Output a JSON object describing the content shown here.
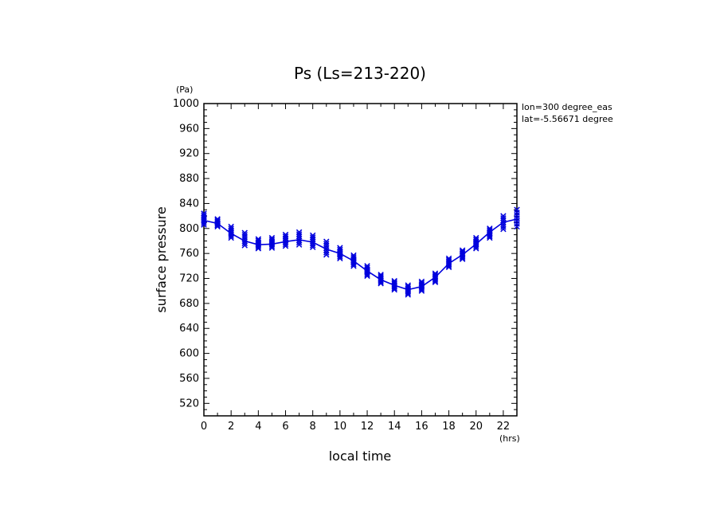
{
  "chart_data": {
    "type": "line",
    "title": "Ps (Ls=213-220)",
    "xlabel": "local time",
    "ylabel": "surface pressure",
    "x_unit": "(hrs)",
    "y_unit": "(Pa)",
    "annotations": [
      "lon=300 degree_eas",
      "lat=-5.56671 degree"
    ],
    "xlim": [
      0,
      23
    ],
    "ylim": [
      500,
      1000
    ],
    "x_ticks": [
      0,
      2,
      4,
      6,
      8,
      10,
      12,
      14,
      16,
      18,
      20,
      22
    ],
    "x_tick_labels": [
      "0",
      "2",
      "4",
      "6",
      "8",
      "10",
      "12",
      "14",
      "16",
      "18",
      "20",
      "22"
    ],
    "y_ticks": [
      520,
      560,
      600,
      640,
      680,
      720,
      760,
      800,
      840,
      880,
      920,
      960,
      1000
    ],
    "y_tick_labels": [
      "520",
      "560",
      "600",
      "640",
      "680",
      "720",
      "760",
      "800",
      "840",
      "880",
      "920",
      "960",
      "1000"
    ],
    "grid": false,
    "colors": {
      "series": "#0000dd",
      "axes": "#000000"
    },
    "series": [
      {
        "marker": "x",
        "x": [
          0,
          1,
          2,
          3,
          4,
          5,
          6,
          7,
          8,
          9,
          10,
          11,
          12,
          13,
          14,
          15,
          16,
          17,
          18,
          19,
          20,
          21,
          22,
          23
        ],
        "values": [
          813,
          808,
          792,
          780,
          774,
          775,
          779,
          782,
          778,
          767,
          760,
          748,
          732,
          718,
          709,
          702,
          707,
          722,
          744,
          758,
          775,
          794,
          810,
          815
        ],
        "spread": [
          [
            806,
            824
          ],
          [
            803,
            815
          ],
          [
            785,
            803
          ],
          [
            773,
            793
          ],
          [
            768,
            783
          ],
          [
            769,
            785
          ],
          [
            772,
            790
          ],
          [
            774,
            794
          ],
          [
            770,
            789
          ],
          [
            758,
            779
          ],
          [
            752,
            769
          ],
          [
            740,
            757
          ],
          [
            724,
            740
          ],
          [
            712,
            726
          ],
          [
            702,
            716
          ],
          [
            694,
            709
          ],
          [
            700,
            715
          ],
          [
            714,
            728
          ],
          [
            738,
            752
          ],
          [
            751,
            765
          ],
          [
            768,
            785
          ],
          [
            785,
            800
          ],
          [
            799,
            820
          ],
          [
            803,
            830
          ]
        ]
      }
    ]
  }
}
